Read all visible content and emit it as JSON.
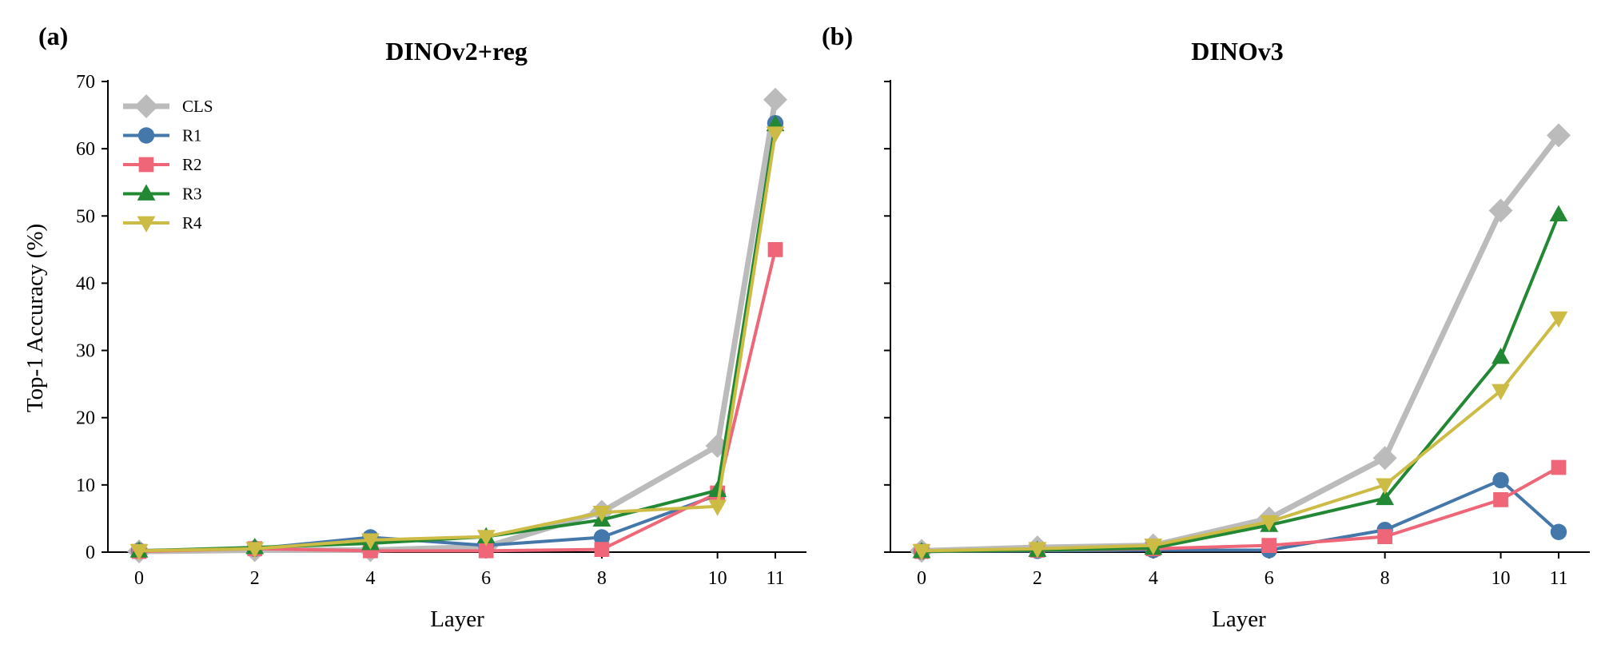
{
  "chart_data": [
    {
      "type": "line",
      "panel_label": "(a)",
      "title": "DINOv2+reg",
      "xlabel": "Layer",
      "ylabel": "Top-1 Accuracy (%)",
      "x": [
        0,
        2,
        4,
        6,
        8,
        10,
        11
      ],
      "xticks": [
        "0",
        "2",
        "4",
        "6",
        "8",
        "10",
        "11"
      ],
      "ylim": [
        0,
        70
      ],
      "yticks": [
        "0",
        "10",
        "20",
        "30",
        "40",
        "50",
        "60",
        "70"
      ],
      "legend_position": "top-left",
      "series": [
        {
          "name": "CLS",
          "color": "#bbbbbb",
          "marker": "diamond",
          "values": [
            0.1,
            0.3,
            0.3,
            0.8,
            6.0,
            15.8,
            67.3
          ]
        },
        {
          "name": "R1",
          "color": "#4477aa",
          "marker": "circle",
          "values": [
            0.2,
            0.5,
            2.2,
            1.0,
            2.2,
            8.5,
            63.8
          ]
        },
        {
          "name": "R2",
          "color": "#ee6677",
          "marker": "square",
          "values": [
            0.1,
            0.5,
            0.2,
            0.2,
            0.4,
            8.8,
            45.0
          ]
        },
        {
          "name": "R3",
          "color": "#228833",
          "marker": "triangle-up",
          "values": [
            0.2,
            0.7,
            1.3,
            2.3,
            4.8,
            9.2,
            63.6
          ]
        },
        {
          "name": "R4",
          "color": "#ccbb44",
          "marker": "triangle-down",
          "values": [
            0.2,
            0.5,
            1.8,
            2.3,
            5.9,
            6.8,
            62.3
          ]
        }
      ]
    },
    {
      "type": "line",
      "panel_label": "(b)",
      "title": "DINOv3",
      "xlabel": "Layer",
      "ylabel": "",
      "x": [
        0,
        2,
        4,
        6,
        8,
        10,
        11
      ],
      "xticks": [
        "0",
        "2",
        "4",
        "6",
        "8",
        "10",
        "11"
      ],
      "ylim": [
        0,
        70
      ],
      "yticks": [],
      "series": [
        {
          "name": "CLS",
          "color": "#bbbbbb",
          "marker": "diamond",
          "values": [
            0.2,
            0.7,
            1.0,
            5.0,
            14.0,
            50.8,
            62.0
          ]
        },
        {
          "name": "R1",
          "color": "#4477aa",
          "marker": "circle",
          "values": [
            0.1,
            0.2,
            0.3,
            0.3,
            3.3,
            10.7,
            3.0
          ]
        },
        {
          "name": "R2",
          "color": "#ee6677",
          "marker": "square",
          "values": [
            0.1,
            0.3,
            0.5,
            1.0,
            2.3,
            7.8,
            12.6
          ]
        },
        {
          "name": "R3",
          "color": "#228833",
          "marker": "triangle-up",
          "values": [
            0.1,
            0.3,
            0.6,
            4.0,
            8.0,
            29.0,
            50.2
          ]
        },
        {
          "name": "R4",
          "color": "#ccbb44",
          "marker": "triangle-down",
          "values": [
            0.2,
            0.5,
            1.0,
            4.5,
            10.0,
            24.0,
            34.8
          ]
        }
      ]
    }
  ]
}
